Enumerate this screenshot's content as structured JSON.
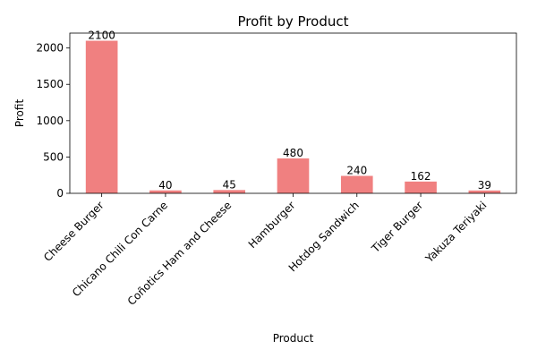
{
  "chart_data": {
    "type": "bar",
    "title": "Profit by Product",
    "xlabel": "Product",
    "ylabel": "Profit",
    "categories": [
      "Cheese Burger",
      "Chicano Chili Con Carne",
      "Coñotics Ham and Cheese",
      "Hamburger",
      "Hotdog Sandwich",
      "Tiger Burger",
      "Yakuza Teriyaki"
    ],
    "values": [
      2100,
      40,
      45,
      480,
      240,
      162,
      39
    ],
    "ylim": [
      0,
      2205
    ],
    "yticks": [
      0,
      500,
      1000,
      1500,
      2000
    ],
    "bar_color": "#f08080",
    "grid": false,
    "legend": false
  }
}
